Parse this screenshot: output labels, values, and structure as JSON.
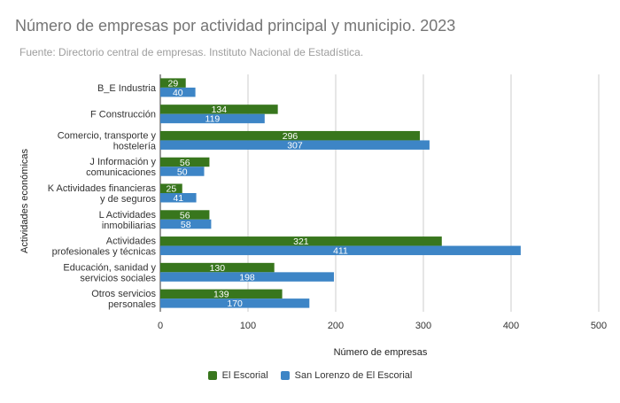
{
  "header": {
    "title": "Número de empresas por actividad principal y municipio. 2023",
    "subtitle": "Fuente: Directorio central de empresas. Instituto Nacional de Estadística."
  },
  "chart_data": {
    "type": "bar",
    "orientation": "horizontal",
    "categories": [
      [
        "B_E Industria"
      ],
      [
        "F Construcción"
      ],
      [
        "Comercio, transporte y",
        "hostelería"
      ],
      [
        "J Información y",
        "comunicaciones"
      ],
      [
        "K Actividades financieras",
        "y de seguros"
      ],
      [
        "L Actividades",
        "inmobiliarias"
      ],
      [
        "Actividades",
        "profesionales y técnicas"
      ],
      [
        "Educación, sanidad y",
        "servicios sociales"
      ],
      [
        "Otros servicios",
        "personales"
      ]
    ],
    "series": [
      {
        "name": "El Escorial",
        "color": "#38761d",
        "values": [
          29,
          134,
          296,
          56,
          25,
          56,
          321,
          130,
          139
        ]
      },
      {
        "name": "San Lorenzo de El Escorial",
        "color": "#3d85c6",
        "values": [
          40,
          119,
          307,
          50,
          41,
          58,
          411,
          198,
          170
        ]
      }
    ],
    "xlabel": "Número de empresas",
    "ylabel": "Actividades económicas",
    "xlim": [
      0,
      500
    ],
    "xticks": [
      0,
      100,
      200,
      300,
      400,
      500
    ],
    "grid": true,
    "legend_position": "bottom"
  }
}
